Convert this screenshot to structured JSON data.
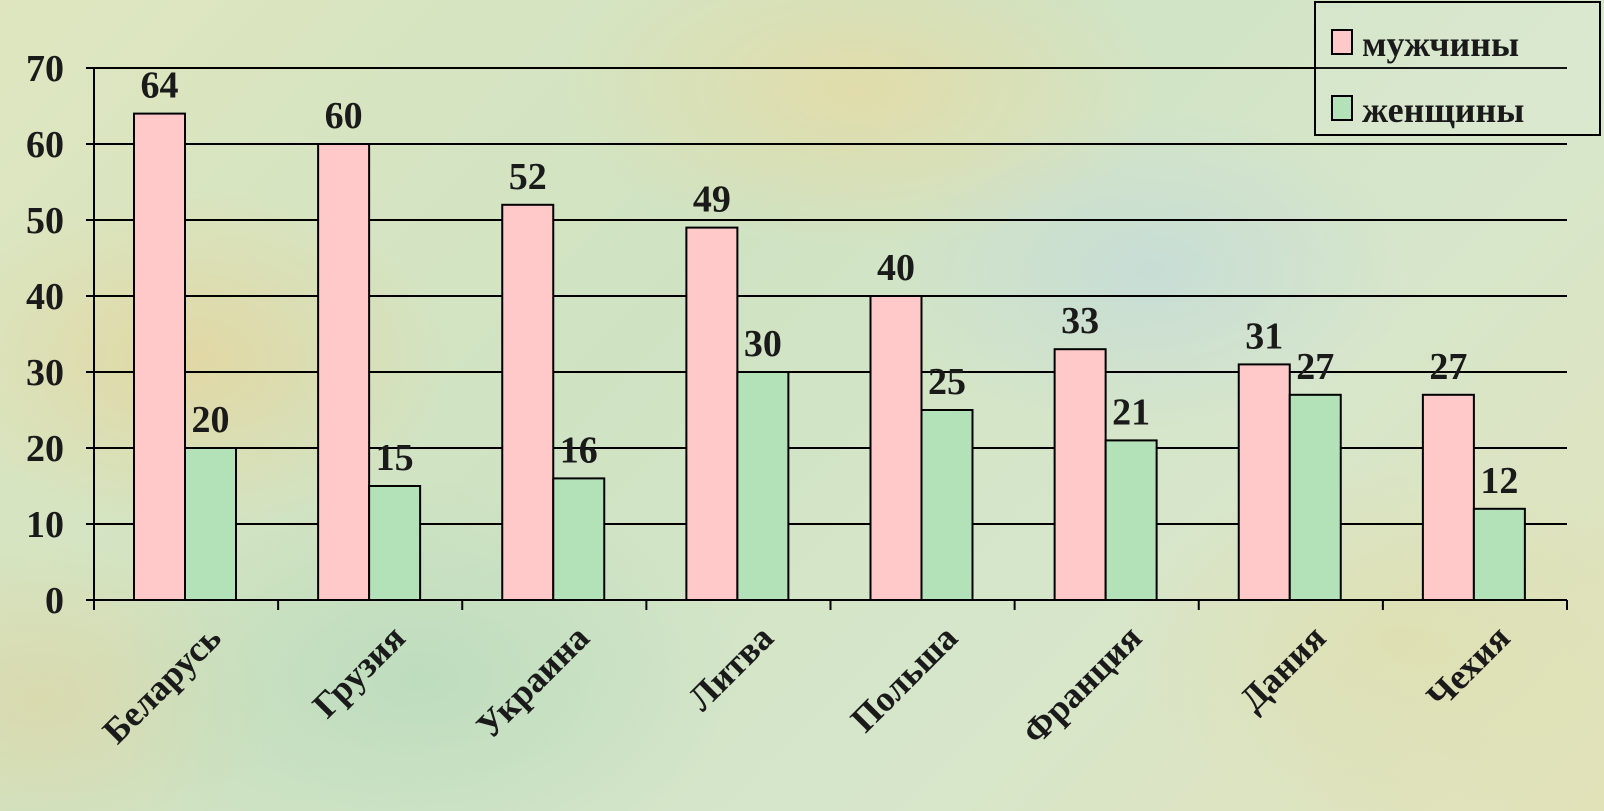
{
  "chart_data": {
    "type": "bar",
    "categories": [
      "Беларусь",
      "Грузия",
      "Украина",
      "Литва",
      "Польша",
      "Франция",
      "Дания",
      "Чехия"
    ],
    "series": [
      {
        "name": "мужчины",
        "values": [
          64,
          60,
          52,
          49,
          40,
          33,
          31,
          27
        ],
        "color": "#ffc9c9"
      },
      {
        "name": "женщины",
        "values": [
          20,
          15,
          16,
          30,
          25,
          21,
          27,
          12
        ],
        "color": "#b3e2b8"
      }
    ],
    "ylim": [
      0,
      70
    ],
    "yticks": [
      0,
      10,
      20,
      30,
      40,
      50,
      60,
      70
    ],
    "grid": true,
    "legend_position": "top-right",
    "data_labels": true
  }
}
